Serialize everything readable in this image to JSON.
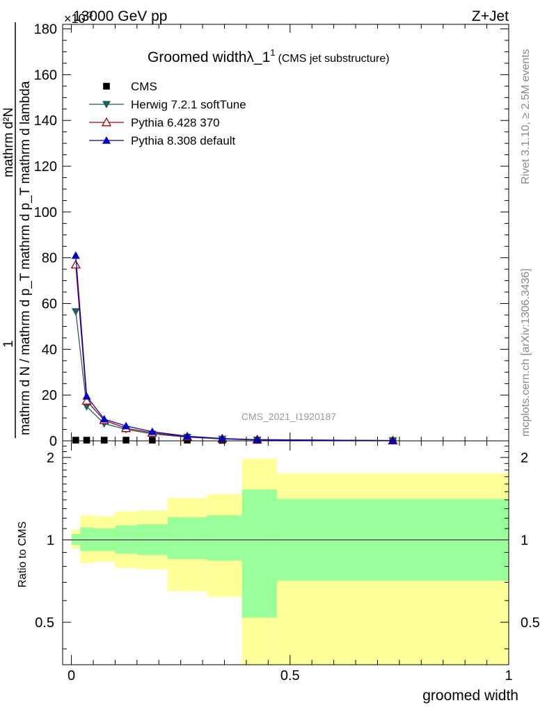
{
  "header": {
    "energy_label": "13000 GeV pp",
    "process_label": "Z+Jet",
    "exponent_label": "×10",
    "exponent_power": "-3"
  },
  "side_labels": {
    "rivet": "Rivet 3.1.10, ≥ 2.5M events",
    "mcplots": "mcplots.cern.ch [arXiv:1306.3436]"
  },
  "watermark": "CMS_2021_I1920187",
  "chart_data": [
    {
      "type": "line",
      "panel": "main",
      "title": "Groomed widthλ_1",
      "title_superscript": "1",
      "subtitle": "(CMS jet substructure)",
      "ylabel_numerator": "mathrm d²N",
      "ylabel_denominator": "mathrm d N / mathrm d p_T mathrm d p_T mathrm d lambda",
      "ylabel_prefix": "1",
      "ylim": [
        0,
        182
      ],
      "xlim": [
        -0.02,
        1.0
      ],
      "yticks": [
        0,
        20,
        40,
        60,
        80,
        100,
        120,
        140,
        160,
        180
      ],
      "ytick_labels": [
        "0",
        "20",
        "40",
        "60",
        "80",
        "100",
        "120",
        "140",
        "160",
        "180"
      ],
      "legend_position": "top-left",
      "series": [
        {
          "name": "CMS",
          "marker": "square",
          "color": "#000000",
          "x": [
            0.01,
            0.035,
            0.075,
            0.125,
            0.185,
            0.265,
            0.345,
            0.425,
            0.735
          ],
          "y": [
            0.3,
            0.3,
            0.3,
            0.3,
            0.3,
            0.3,
            0.2,
            0.2,
            0.1
          ]
        },
        {
          "name": "Herwig 7.2.1 softTune",
          "marker": "triangle-down",
          "color": "#1f5f5f",
          "x": [
            0.01,
            0.035,
            0.075,
            0.125,
            0.185,
            0.265,
            0.345,
            0.425,
            0.735
          ],
          "y": [
            56.5,
            15.0,
            7.5,
            5.0,
            3.0,
            1.6,
            0.8,
            0.4,
            0.1
          ]
        },
        {
          "name": "Pythia 6.428 370",
          "marker": "triangle-up-open",
          "color": "#a00000",
          "x": [
            0.01,
            0.035,
            0.075,
            0.125,
            0.185,
            0.265,
            0.345,
            0.425,
            0.735
          ],
          "y": [
            77.0,
            17.5,
            9.0,
            5.5,
            3.5,
            1.8,
            0.9,
            0.5,
            0.1
          ]
        },
        {
          "name": "Pythia 8.308 default",
          "marker": "triangle-up",
          "color": "#0000cc",
          "x": [
            0.01,
            0.035,
            0.075,
            0.125,
            0.185,
            0.265,
            0.345,
            0.425,
            0.735
          ],
          "y": [
            81.0,
            19.5,
            9.5,
            6.5,
            4.0,
            2.0,
            1.0,
            0.5,
            0.1
          ]
        }
      ]
    },
    {
      "type": "area",
      "panel": "ratio",
      "ylabel": "Ratio to CMS",
      "xlabel": "groomed width",
      "xlim": [
        -0.02,
        1.0
      ],
      "ylim": [
        0.35,
        2.3
      ],
      "yticks": [
        0.5,
        1,
        2
      ],
      "ytick_labels": [
        "0.5",
        "1",
        "2"
      ],
      "xticks": [
        0,
        0.5,
        1
      ],
      "xtick_labels": [
        "0",
        "0.5",
        "1"
      ],
      "reference_line": 1,
      "bins": [
        {
          "x_low": 0.0,
          "x_high": 0.02,
          "inner_low": 0.96,
          "inner_high": 1.05,
          "outer_low": 0.93,
          "outer_high": 1.09
        },
        {
          "x_low": 0.02,
          "x_high": 0.05,
          "inner_low": 0.91,
          "inner_high": 1.11,
          "outer_low": 0.82,
          "outer_high": 1.23
        },
        {
          "x_low": 0.05,
          "x_high": 0.1,
          "inner_low": 0.91,
          "inner_high": 1.1,
          "outer_low": 0.83,
          "outer_high": 1.22
        },
        {
          "x_low": 0.1,
          "x_high": 0.15,
          "inner_low": 0.89,
          "inner_high": 1.13,
          "outer_low": 0.79,
          "outer_high": 1.27
        },
        {
          "x_low": 0.15,
          "x_high": 0.22,
          "inner_low": 0.88,
          "inner_high": 1.14,
          "outer_low": 0.78,
          "outer_high": 1.28
        },
        {
          "x_low": 0.22,
          "x_high": 0.31,
          "inner_low": 0.85,
          "inner_high": 1.21,
          "outer_low": 0.65,
          "outer_high": 1.42
        },
        {
          "x_low": 0.31,
          "x_high": 0.39,
          "inner_low": 0.84,
          "inner_high": 1.23,
          "outer_low": 0.62,
          "outer_high": 1.47
        },
        {
          "x_low": 0.39,
          "x_high": 0.47,
          "inner_low": 0.52,
          "inner_high": 1.53,
          "outer_low": 0.35,
          "outer_high": 1.98
        },
        {
          "x_low": 0.47,
          "x_high": 1.0,
          "inner_low": 0.71,
          "inner_high": 1.41,
          "outer_low": 0.35,
          "outer_high": 1.75
        }
      ]
    }
  ],
  "colors": {
    "inner_band": "#99ff99",
    "outer_band": "#ffff99"
  }
}
